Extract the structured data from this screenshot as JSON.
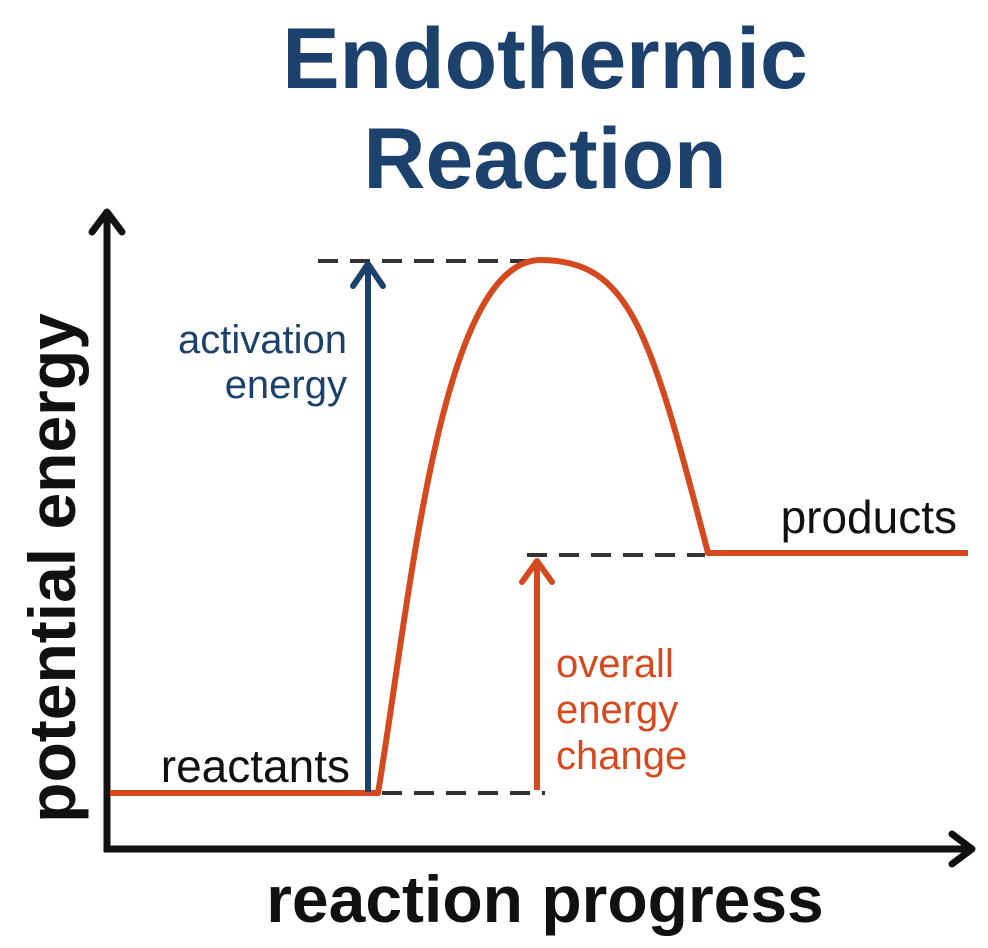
{
  "title": {
    "line1": "Endothermic",
    "line2": "Reaction"
  },
  "axes": {
    "y_label": "potential energy",
    "x_label": "reaction progress"
  },
  "states": {
    "reactants": "reactants",
    "products": "products"
  },
  "annotations": {
    "activation_energy": {
      "line1": "activation",
      "line2": "energy"
    },
    "overall_energy_change": {
      "line1": "overall",
      "line2": "energy",
      "line3": "change"
    }
  },
  "colors": {
    "title": "#1c416d",
    "curve": "#d44a1e",
    "activation_arrow": "#1c416d",
    "overall_arrow": "#d44a1e",
    "axes": "#111111",
    "dashes": "#333333",
    "text": "#111111"
  },
  "icons": {
    "y_axis_arrow": "arrow-up-icon",
    "x_axis_arrow": "arrow-right-icon"
  }
}
